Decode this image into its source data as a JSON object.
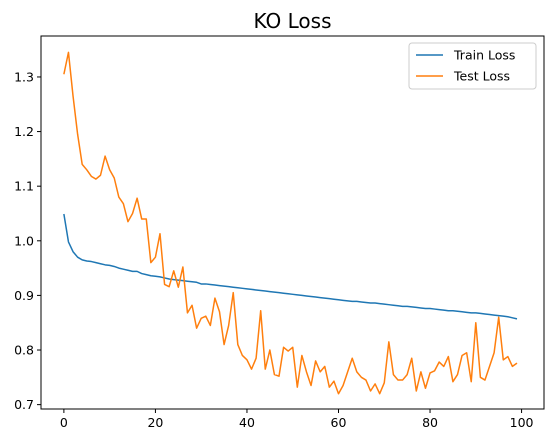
{
  "chart_data": {
    "type": "line",
    "title": "KO Loss",
    "xlabel": "",
    "ylabel": "",
    "xlim": [
      -5,
      104.9
    ],
    "ylim": [
      0.692,
      1.375
    ],
    "xticks": [
      0,
      20,
      40,
      60,
      80,
      100
    ],
    "xtick_labels": [
      "0",
      "20",
      "40",
      "60",
      "80",
      "100"
    ],
    "yticks": [
      0.7,
      0.8,
      0.9,
      1.0,
      1.1,
      1.2,
      1.3
    ],
    "ytick_labels": [
      "0.7",
      "0.8",
      "0.9",
      "1.0",
      "1.1",
      "1.2",
      "1.3"
    ],
    "grid": false,
    "legend_position": "top-right",
    "series": [
      {
        "name": "Train Loss",
        "color": "#1f77b4",
        "values": [
          1.049,
          0.998,
          0.98,
          0.97,
          0.965,
          0.963,
          0.962,
          0.96,
          0.958,
          0.956,
          0.955,
          0.953,
          0.95,
          0.948,
          0.946,
          0.944,
          0.944,
          0.94,
          0.938,
          0.936,
          0.935,
          0.934,
          0.932,
          0.93,
          0.929,
          0.928,
          0.927,
          0.926,
          0.925,
          0.924,
          0.921,
          0.921,
          0.92,
          0.919,
          0.918,
          0.917,
          0.916,
          0.915,
          0.914,
          0.913,
          0.912,
          0.911,
          0.91,
          0.909,
          0.908,
          0.907,
          0.906,
          0.905,
          0.904,
          0.903,
          0.902,
          0.901,
          0.9,
          0.899,
          0.898,
          0.897,
          0.896,
          0.895,
          0.894,
          0.893,
          0.892,
          0.891,
          0.89,
          0.889,
          0.889,
          0.888,
          0.887,
          0.886,
          0.886,
          0.885,
          0.884,
          0.883,
          0.882,
          0.881,
          0.88,
          0.88,
          0.879,
          0.878,
          0.877,
          0.876,
          0.876,
          0.875,
          0.874,
          0.873,
          0.872,
          0.872,
          0.871,
          0.87,
          0.869,
          0.868,
          0.868,
          0.867,
          0.866,
          0.865,
          0.864,
          0.863,
          0.862,
          0.861,
          0.859,
          0.857
        ]
      },
      {
        "name": "Test Loss",
        "color": "#ff7f0e",
        "values": [
          1.305,
          1.345,
          1.265,
          1.195,
          1.14,
          1.13,
          1.118,
          1.113,
          1.12,
          1.155,
          1.13,
          1.115,
          1.08,
          1.068,
          1.035,
          1.05,
          1.078,
          1.04,
          1.04,
          0.96,
          0.97,
          1.013,
          0.92,
          0.916,
          0.945,
          0.915,
          0.952,
          0.868,
          0.882,
          0.84,
          0.858,
          0.862,
          0.845,
          0.895,
          0.87,
          0.81,
          0.845,
          0.905,
          0.81,
          0.79,
          0.782,
          0.765,
          0.785,
          0.872,
          0.765,
          0.8,
          0.755,
          0.752,
          0.805,
          0.798,
          0.805,
          0.732,
          0.79,
          0.76,
          0.735,
          0.78,
          0.76,
          0.77,
          0.732,
          0.743,
          0.72,
          0.735,
          0.76,
          0.785,
          0.76,
          0.75,
          0.745,
          0.725,
          0.738,
          0.72,
          0.74,
          0.815,
          0.755,
          0.745,
          0.745,
          0.755,
          0.785,
          0.725,
          0.76,
          0.73,
          0.758,
          0.762,
          0.778,
          0.77,
          0.788,
          0.742,
          0.755,
          0.79,
          0.795,
          0.742,
          0.85,
          0.75,
          0.745,
          0.77,
          0.795,
          0.86,
          0.782,
          0.788,
          0.77,
          0.776
        ]
      }
    ]
  }
}
